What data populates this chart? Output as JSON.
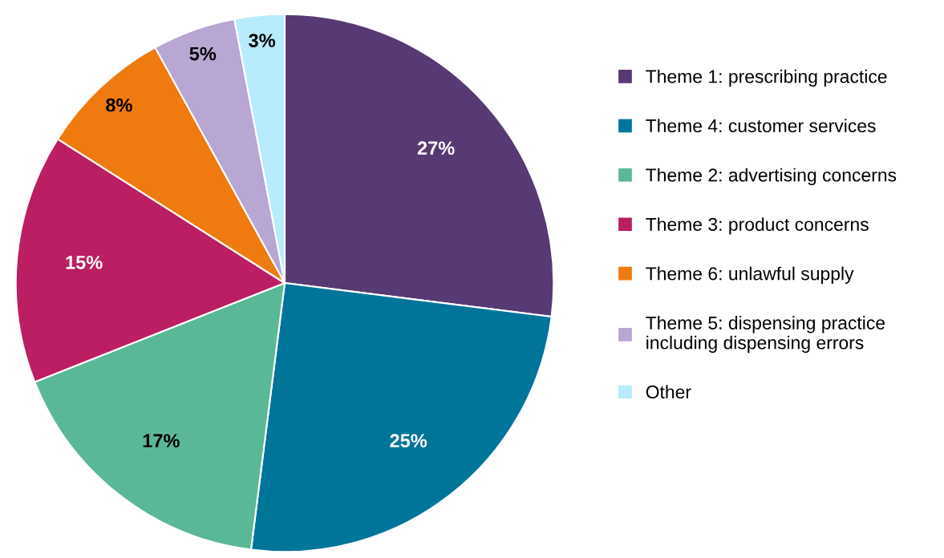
{
  "chart_data": {
    "type": "pie",
    "categories": [
      "Theme 1: prescribing practice",
      "Theme 4: customer services",
      "Theme 2: advertising concerns",
      "Theme 3: product concerns",
      "Theme 6: unlawful supply",
      "Theme 5: dispensing practice\nincluding dispensing errors",
      "Other"
    ],
    "values": [
      27,
      25,
      17,
      15,
      8,
      5,
      3
    ],
    "colors": [
      "#573a73",
      "#00759a",
      "#5bb896",
      "#bb1e62",
      "#ef7b10",
      "#b8a6d3",
      "#b8ebfb"
    ],
    "value_labels": [
      "27%",
      "25%",
      "17%",
      "15%",
      "8%",
      "5%",
      "3%"
    ],
    "legend": "right"
  }
}
